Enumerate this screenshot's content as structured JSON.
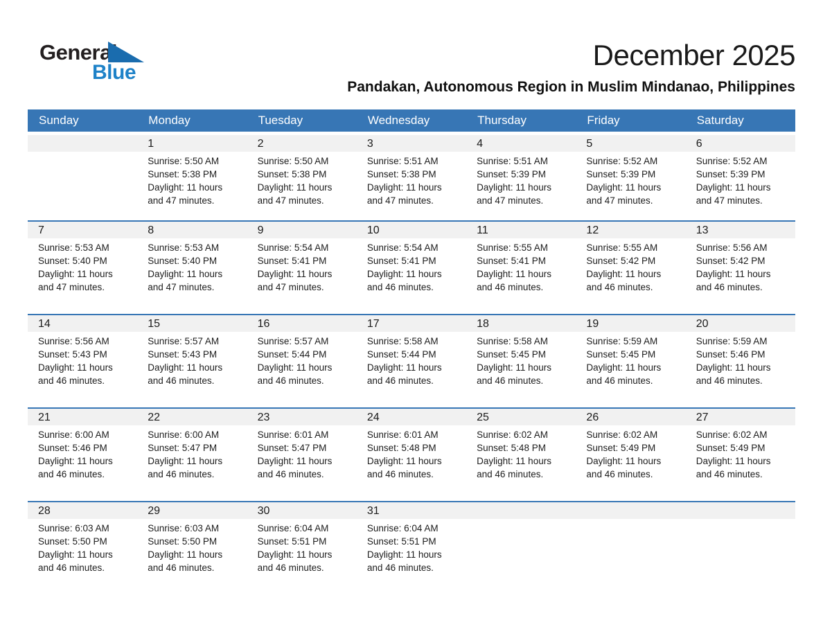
{
  "logo": {
    "word_top": "General",
    "word_bottom": "Blue"
  },
  "header": {
    "title": "December 2025",
    "subtitle": "Pandakan, Autonomous Region in Muslim Mindanao, Philippines"
  },
  "colors": {
    "header_blue": "#3776b5",
    "week_separator_blue": "#3776b5",
    "day_band_gray": "#f1f1f1",
    "logo_text_black": "#231f20",
    "logo_blue": "#1e82c8",
    "logo_triangle_blue": "#1a6cae"
  },
  "calendar": {
    "weekdays": [
      "Sunday",
      "Monday",
      "Tuesday",
      "Wednesday",
      "Thursday",
      "Friday",
      "Saturday"
    ],
    "weeks": [
      [
        {
          "day": "",
          "lines": []
        },
        {
          "day": "1",
          "lines": [
            "Sunrise: 5:50 AM",
            "Sunset: 5:38 PM",
            "Daylight: 11 hours",
            "and 47 minutes."
          ]
        },
        {
          "day": "2",
          "lines": [
            "Sunrise: 5:50 AM",
            "Sunset: 5:38 PM",
            "Daylight: 11 hours",
            "and 47 minutes."
          ]
        },
        {
          "day": "3",
          "lines": [
            "Sunrise: 5:51 AM",
            "Sunset: 5:38 PM",
            "Daylight: 11 hours",
            "and 47 minutes."
          ]
        },
        {
          "day": "4",
          "lines": [
            "Sunrise: 5:51 AM",
            "Sunset: 5:39 PM",
            "Daylight: 11 hours",
            "and 47 minutes."
          ]
        },
        {
          "day": "5",
          "lines": [
            "Sunrise: 5:52 AM",
            "Sunset: 5:39 PM",
            "Daylight: 11 hours",
            "and 47 minutes."
          ]
        },
        {
          "day": "6",
          "lines": [
            "Sunrise: 5:52 AM",
            "Sunset: 5:39 PM",
            "Daylight: 11 hours",
            "and 47 minutes."
          ]
        }
      ],
      [
        {
          "day": "7",
          "lines": [
            "Sunrise: 5:53 AM",
            "Sunset: 5:40 PM",
            "Daylight: 11 hours",
            "and 47 minutes."
          ]
        },
        {
          "day": "8",
          "lines": [
            "Sunrise: 5:53 AM",
            "Sunset: 5:40 PM",
            "Daylight: 11 hours",
            "and 47 minutes."
          ]
        },
        {
          "day": "9",
          "lines": [
            "Sunrise: 5:54 AM",
            "Sunset: 5:41 PM",
            "Daylight: 11 hours",
            "and 47 minutes."
          ]
        },
        {
          "day": "10",
          "lines": [
            "Sunrise: 5:54 AM",
            "Sunset: 5:41 PM",
            "Daylight: 11 hours",
            "and 46 minutes."
          ]
        },
        {
          "day": "11",
          "lines": [
            "Sunrise: 5:55 AM",
            "Sunset: 5:41 PM",
            "Daylight: 11 hours",
            "and 46 minutes."
          ]
        },
        {
          "day": "12",
          "lines": [
            "Sunrise: 5:55 AM",
            "Sunset: 5:42 PM",
            "Daylight: 11 hours",
            "and 46 minutes."
          ]
        },
        {
          "day": "13",
          "lines": [
            "Sunrise: 5:56 AM",
            "Sunset: 5:42 PM",
            "Daylight: 11 hours",
            "and 46 minutes."
          ]
        }
      ],
      [
        {
          "day": "14",
          "lines": [
            "Sunrise: 5:56 AM",
            "Sunset: 5:43 PM",
            "Daylight: 11 hours",
            "and 46 minutes."
          ]
        },
        {
          "day": "15",
          "lines": [
            "Sunrise: 5:57 AM",
            "Sunset: 5:43 PM",
            "Daylight: 11 hours",
            "and 46 minutes."
          ]
        },
        {
          "day": "16",
          "lines": [
            "Sunrise: 5:57 AM",
            "Sunset: 5:44 PM",
            "Daylight: 11 hours",
            "and 46 minutes."
          ]
        },
        {
          "day": "17",
          "lines": [
            "Sunrise: 5:58 AM",
            "Sunset: 5:44 PM",
            "Daylight: 11 hours",
            "and 46 minutes."
          ]
        },
        {
          "day": "18",
          "lines": [
            "Sunrise: 5:58 AM",
            "Sunset: 5:45 PM",
            "Daylight: 11 hours",
            "and 46 minutes."
          ]
        },
        {
          "day": "19",
          "lines": [
            "Sunrise: 5:59 AM",
            "Sunset: 5:45 PM",
            "Daylight: 11 hours",
            "and 46 minutes."
          ]
        },
        {
          "day": "20",
          "lines": [
            "Sunrise: 5:59 AM",
            "Sunset: 5:46 PM",
            "Daylight: 11 hours",
            "and 46 minutes."
          ]
        }
      ],
      [
        {
          "day": "21",
          "lines": [
            "Sunrise: 6:00 AM",
            "Sunset: 5:46 PM",
            "Daylight: 11 hours",
            "and 46 minutes."
          ]
        },
        {
          "day": "22",
          "lines": [
            "Sunrise: 6:00 AM",
            "Sunset: 5:47 PM",
            "Daylight: 11 hours",
            "and 46 minutes."
          ]
        },
        {
          "day": "23",
          "lines": [
            "Sunrise: 6:01 AM",
            "Sunset: 5:47 PM",
            "Daylight: 11 hours",
            "and 46 minutes."
          ]
        },
        {
          "day": "24",
          "lines": [
            "Sunrise: 6:01 AM",
            "Sunset: 5:48 PM",
            "Daylight: 11 hours",
            "and 46 minutes."
          ]
        },
        {
          "day": "25",
          "lines": [
            "Sunrise: 6:02 AM",
            "Sunset: 5:48 PM",
            "Daylight: 11 hours",
            "and 46 minutes."
          ]
        },
        {
          "day": "26",
          "lines": [
            "Sunrise: 6:02 AM",
            "Sunset: 5:49 PM",
            "Daylight: 11 hours",
            "and 46 minutes."
          ]
        },
        {
          "day": "27",
          "lines": [
            "Sunrise: 6:02 AM",
            "Sunset: 5:49 PM",
            "Daylight: 11 hours",
            "and 46 minutes."
          ]
        }
      ],
      [
        {
          "day": "28",
          "lines": [
            "Sunrise: 6:03 AM",
            "Sunset: 5:50 PM",
            "Daylight: 11 hours",
            "and 46 minutes."
          ]
        },
        {
          "day": "29",
          "lines": [
            "Sunrise: 6:03 AM",
            "Sunset: 5:50 PM",
            "Daylight: 11 hours",
            "and 46 minutes."
          ]
        },
        {
          "day": "30",
          "lines": [
            "Sunrise: 6:04 AM",
            "Sunset: 5:51 PM",
            "Daylight: 11 hours",
            "and 46 minutes."
          ]
        },
        {
          "day": "31",
          "lines": [
            "Sunrise: 6:04 AM",
            "Sunset: 5:51 PM",
            "Daylight: 11 hours",
            "and 46 minutes."
          ]
        },
        {
          "day": "",
          "lines": []
        },
        {
          "day": "",
          "lines": []
        },
        {
          "day": "",
          "lines": []
        }
      ]
    ]
  }
}
